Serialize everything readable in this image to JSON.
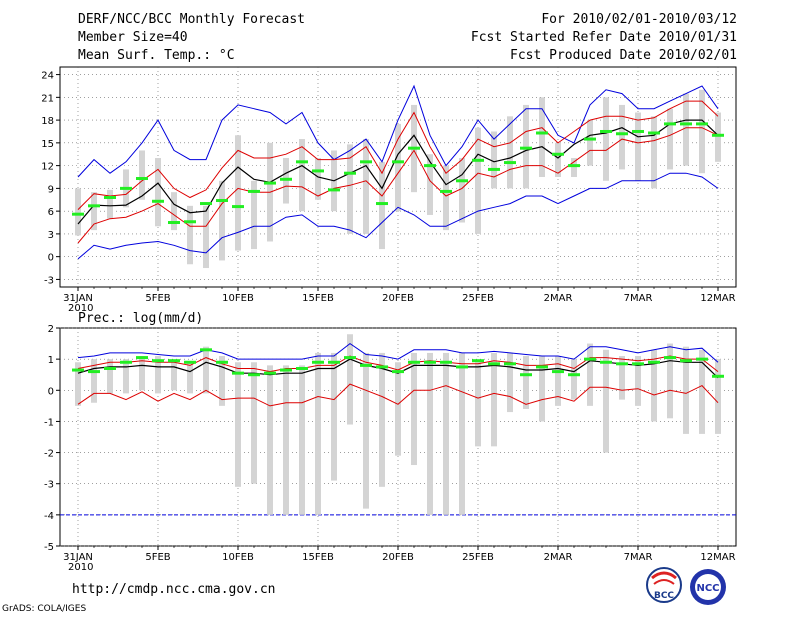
{
  "header": {
    "title": "DERF/NCC/BCC Monthly Forecast",
    "member_size": "Member Size=40",
    "variable": "Mean Surf. Temp.: °C",
    "period": "For 2010/02/01-2010/03/12",
    "started": "Fcst Started Refer Date 2010/01/31",
    "produced": "Fcst Produced Date 2010/02/01"
  },
  "footer": {
    "url": "http://cmdp.ncc.cma.gov.cn",
    "grads": "GrADS: COLA/IGES"
  },
  "logos": {
    "bcc": "BCC",
    "ncc": "NCC"
  },
  "colors": {
    "envelope": "#0000dd",
    "spread": "#dd0000",
    "mean": "#000000",
    "box": "#d4d4d4",
    "green": "#22ee22"
  },
  "chart_data": [
    {
      "type": "line",
      "title": "Mean Surf. Temp.: °C",
      "x_tick_labels": [
        "31JAN\n2010",
        "5FEB",
        "10FEB",
        "15FEB",
        "20FEB",
        "25FEB",
        "2MAR",
        "7MAR",
        "12MAR"
      ],
      "x_tick_days": [
        0,
        5,
        10,
        15,
        20,
        25,
        30,
        35,
        40
      ],
      "ylim": [
        -4,
        25
      ],
      "y_ticks": [
        -3,
        0,
        3,
        6,
        9,
        12,
        15,
        18,
        21,
        24
      ],
      "series": {
        "bar_top": [
          9,
          8.5,
          8.8,
          11.5,
          14,
          13,
          8.5,
          6.7,
          6.7,
          10,
          16,
          10,
          15,
          13,
          15.5,
          13,
          14,
          14.8,
          15.5,
          12.5,
          17.5,
          20,
          13.5,
          12,
          13,
          17,
          16.5,
          18.5,
          20,
          21,
          15,
          13,
          18,
          21,
          20,
          19,
          18.5,
          19.5,
          21.5,
          22,
          19
        ],
        "bar_bottom": [
          2.8,
          3.5,
          5,
          6.5,
          7.5,
          4,
          3.5,
          -1,
          -1.5,
          -0.5,
          0.8,
          1,
          2,
          7,
          6,
          7.5,
          6,
          3,
          3,
          1,
          6,
          8.5,
          5.5,
          3.5,
          4.5,
          3,
          9,
          9,
          9,
          10.5,
          10.5,
          10.5,
          12,
          10,
          11.5,
          10,
          9,
          11.5,
          12,
          11,
          12.5
        ],
        "upper": [
          -0.3,
          1.5,
          1,
          1.5,
          1.8,
          2,
          1.5,
          0.8,
          0.5,
          2.5,
          3.2,
          4,
          4,
          5.2,
          5.5,
          4,
          4,
          3.5,
          2.5,
          4.5,
          6.5,
          5.5,
          4,
          4,
          5,
          6,
          6.5,
          7,
          8,
          8,
          7,
          8,
          9,
          9,
          10,
          10,
          10,
          11,
          11,
          10.5,
          9
        ],
        "lower_red": [
          1.8,
          4.3,
          5,
          5.2,
          6,
          7,
          5.5,
          4,
          4,
          7,
          9,
          8.5,
          8.5,
          9.3,
          9.2,
          8,
          9,
          9.4,
          10,
          8,
          11,
          14,
          10,
          8,
          9,
          11,
          10.5,
          11.5,
          12,
          12,
          11,
          12.5,
          14,
          14,
          15.5,
          15,
          15.3,
          16,
          17,
          17,
          16
        ],
        "mean": [
          4.3,
          6.8,
          6.7,
          6.8,
          8,
          9.7,
          6.9,
          5.8,
          6,
          9.7,
          11.8,
          10.2,
          9.8,
          11,
          12,
          10.5,
          10,
          11,
          12,
          9,
          13.5,
          16,
          12.5,
          9.5,
          10.8,
          13.5,
          12.5,
          13,
          14,
          14.5,
          13,
          14.8,
          16,
          16.3,
          17,
          15.8,
          16,
          17.5,
          18,
          18,
          16
        ],
        "upper_red": [
          6.2,
          8.3,
          8,
          8.2,
          10,
          11.5,
          9,
          7.8,
          8.8,
          11.7,
          14,
          13,
          13,
          13.5,
          14.5,
          12.8,
          12.8,
          13,
          14.5,
          11,
          15.5,
          19,
          14.5,
          11,
          12.8,
          15.5,
          14.5,
          15,
          16.5,
          17,
          15,
          16.5,
          18,
          18.5,
          18.5,
          18,
          18.3,
          19.5,
          20.5,
          20.5,
          18.5
        ],
        "envelope": [
          10.5,
          12.8,
          11,
          12.5,
          15,
          18,
          14,
          12.8,
          12.8,
          18,
          20,
          19.5,
          19,
          17.5,
          19,
          15,
          12.8,
          14,
          15.5,
          12.5,
          18,
          22.5,
          16,
          12,
          14.5,
          18,
          15.5,
          17.5,
          19.5,
          19.5,
          16,
          15,
          20,
          22,
          21.5,
          19.5,
          19.5,
          20.5,
          21.5,
          22.5,
          19.5
        ],
        "median": [
          5.6,
          6.7,
          7.8,
          9,
          10.3,
          7.3,
          4.5,
          4.6,
          7,
          7.4,
          6.6,
          8.6,
          9.7,
          10.2,
          12.5,
          11.3,
          8.8,
          11,
          12.5,
          7,
          12.5,
          14.3,
          12,
          8.6,
          10,
          12.7,
          11.5,
          12.4,
          14.3,
          16.3,
          13.5,
          12,
          15.5,
          16.5,
          16.2,
          16.5,
          16.3,
          17.5,
          17.5,
          17.5,
          16
        ]
      }
    },
    {
      "type": "line",
      "title": "Prec.: log(mm/d)",
      "x_tick_labels": [
        "31JAN\n2010",
        "5FEB",
        "10FEB",
        "15FEB",
        "20FEB",
        "25FEB",
        "2MAR",
        "7MAR",
        "12MAR"
      ],
      "x_tick_days": [
        0,
        5,
        10,
        15,
        20,
        25,
        30,
        35,
        40
      ],
      "ylim": [
        -5,
        2
      ],
      "y_ticks": [
        -5,
        -4,
        -3,
        -2,
        -1,
        0,
        1,
        2
      ],
      "floor_line": -4,
      "series": {
        "bar_top": [
          0.9,
          1,
          1,
          1,
          1.1,
          1.1,
          0.9,
          0.9,
          1.4,
          1.1,
          0.9,
          0.9,
          0.8,
          0.8,
          0.8,
          1.2,
          1.2,
          1.8,
          1.2,
          1.2,
          0.9,
          1.2,
          1.2,
          1.2,
          1.2,
          0.9,
          1.2,
          1.2,
          1.1,
          1.1,
          1.1,
          1,
          1.5,
          1.3,
          1.1,
          1.1,
          1.3,
          1.5,
          1.4,
          1.3,
          1
        ],
        "bar_bottom": [
          -0.5,
          -0.4,
          -0.1,
          -0.1,
          0,
          -0.1,
          0,
          -0.1,
          -0.1,
          -0.5,
          -3.1,
          -3,
          -4,
          -4,
          -4,
          -4,
          -2.9,
          -1.1,
          -3.8,
          -3.1,
          -2.1,
          -2.4,
          -4,
          -4,
          -4,
          -1.8,
          -1.8,
          -0.7,
          -0.6,
          -1,
          -0.5,
          -0.3,
          -0.5,
          -2,
          -0.3,
          -0.5,
          -1,
          -0.9,
          -1.4,
          -1.4,
          -1.4
        ],
        "envelope": [
          1.05,
          1.1,
          1.2,
          1.2,
          1.2,
          1.15,
          1.1,
          1.1,
          1.3,
          1.2,
          1,
          1,
          1,
          1,
          1,
          1.1,
          1.1,
          1.5,
          1.15,
          1.1,
          1,
          1.3,
          1.3,
          1.3,
          1.2,
          1.2,
          1.25,
          1.2,
          1.15,
          1.1,
          1.1,
          1,
          1.4,
          1.4,
          1.3,
          1.2,
          1.3,
          1.4,
          1.3,
          1.35,
          0.9
        ],
        "upper_red": [
          0.7,
          0.8,
          0.9,
          0.9,
          0.95,
          0.9,
          0.9,
          0.8,
          1.05,
          0.85,
          0.7,
          0.7,
          0.6,
          0.7,
          0.7,
          0.8,
          0.8,
          1.1,
          0.9,
          0.8,
          0.65,
          0.9,
          0.95,
          0.9,
          0.85,
          0.85,
          0.95,
          0.9,
          0.8,
          0.8,
          0.85,
          0.7,
          1.05,
          1.05,
          1,
          0.95,
          1,
          1.1,
          1,
          1,
          0.6
        ],
        "mean": [
          0.55,
          0.7,
          0.75,
          0.75,
          0.8,
          0.75,
          0.75,
          0.6,
          0.9,
          0.75,
          0.55,
          0.55,
          0.5,
          0.55,
          0.55,
          0.7,
          0.7,
          1,
          0.8,
          0.7,
          0.55,
          0.8,
          0.8,
          0.8,
          0.75,
          0.75,
          0.8,
          0.75,
          0.65,
          0.65,
          0.7,
          0.6,
          0.95,
          0.9,
          0.85,
          0.8,
          0.85,
          0.95,
          0.9,
          0.9,
          0.4
        ],
        "lower_red": [
          -0.45,
          -0.1,
          -0.1,
          -0.3,
          -0.05,
          -0.35,
          -0.1,
          -0.3,
          0,
          -0.3,
          -0.25,
          -0.25,
          -0.5,
          -0.4,
          -0.4,
          -0.2,
          -0.3,
          0.2,
          0,
          -0.2,
          -0.45,
          0,
          0,
          0.15,
          -0.05,
          -0.25,
          -0.1,
          -0.2,
          -0.45,
          -0.3,
          -0.2,
          -0.35,
          0.1,
          0.1,
          0,
          0.05,
          -0.15,
          0,
          -0.1,
          0.15,
          -0.4
        ],
        "median": [
          0.65,
          0.6,
          0.7,
          0.9,
          1.05,
          0.95,
          0.95,
          0.9,
          1.3,
          0.9,
          0.55,
          0.5,
          0.55,
          0.65,
          0.7,
          0.9,
          0.9,
          1.05,
          0.8,
          0.75,
          0.6,
          0.9,
          0.9,
          0.9,
          0.75,
          0.95,
          0.85,
          0.85,
          0.5,
          0.75,
          0.6,
          0.5,
          1,
          0.9,
          0.85,
          0.85,
          0.9,
          1.05,
          0.95,
          1,
          0.45
        ]
      }
    }
  ]
}
